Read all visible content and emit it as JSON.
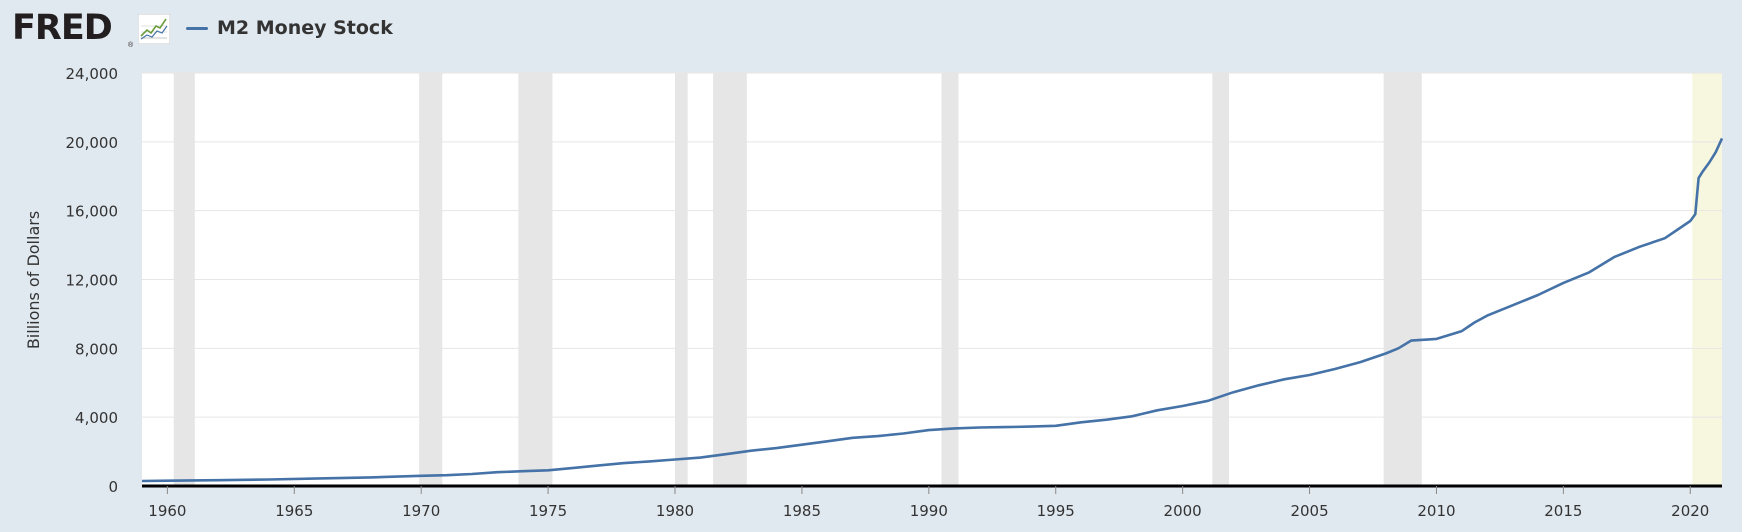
{
  "header": {
    "logo_text": "FRED",
    "logo_mark": "®",
    "graph_icon": "line-chart-icon"
  },
  "chart_data": {
    "type": "line",
    "title": "",
    "legend": {
      "placement": "top-left",
      "entries": [
        "M2 Money Stock"
      ]
    },
    "ylabel": "Billions of Dollars",
    "xlabel": "",
    "xlim": [
      1959.0,
      2021.25
    ],
    "ylim": [
      0,
      24000
    ],
    "grid": true,
    "yticks": [
      0,
      4000,
      8000,
      12000,
      16000,
      20000,
      24000
    ],
    "ytick_labels": [
      "0",
      "4,000",
      "8,000",
      "12,000",
      "16,000",
      "20,000",
      "24,000"
    ],
    "xticks": [
      1960,
      1965,
      1970,
      1975,
      1980,
      1985,
      1990,
      1995,
      2000,
      2005,
      2010,
      2015,
      2020
    ],
    "xtick_labels": [
      "1960",
      "1965",
      "1970",
      "1975",
      "1980",
      "1985",
      "1990",
      "1995",
      "2000",
      "2005",
      "2010",
      "2015",
      "2020"
    ],
    "colors": {
      "series": "#4572a7",
      "recession": "#e6e6e6",
      "projection": "#f7f7df",
      "grid": "#e6e6e6",
      "axis": "#000000"
    },
    "recessions": [
      [
        1960.25,
        1961.08
      ],
      [
        1969.92,
        1970.83
      ],
      [
        1973.83,
        1975.17
      ],
      [
        1980.0,
        1980.5
      ],
      [
        1981.5,
        1982.83
      ],
      [
        1990.5,
        1991.17
      ],
      [
        2001.17,
        2001.83
      ],
      [
        2007.92,
        2009.42
      ]
    ],
    "highlight_band": [
      2020.08,
      2021.25
    ],
    "series": [
      {
        "name": "M2 Money Stock",
        "x": [
          1959.0,
          1960,
          1962,
          1964,
          1966,
          1968,
          1970,
          1971,
          1972,
          1973,
          1974,
          1975,
          1976,
          1977,
          1978,
          1979,
          1980,
          1981,
          1982,
          1983,
          1984,
          1985,
          1986,
          1987,
          1988,
          1989,
          1990,
          1991,
          1992,
          1993,
          1994,
          1995,
          1996,
          1997,
          1998,
          1999,
          2000,
          2001,
          2002,
          2003,
          2004,
          2005,
          2006,
          2007,
          2008,
          2008.5,
          2009,
          2010,
          2011,
          2011.5,
          2012,
          2013,
          2014,
          2015,
          2016,
          2017,
          2018,
          2019,
          2020.0,
          2020.2,
          2020.33,
          2020.5,
          2020.75,
          2021.0,
          2021.25
        ],
        "values": [
          290,
          310,
          335,
          380,
          440,
          500,
          590,
          630,
          700,
          800,
          860,
          910,
          1050,
          1200,
          1330,
          1430,
          1540,
          1650,
          1850,
          2050,
          2200,
          2400,
          2600,
          2800,
          2900,
          3050,
          3250,
          3350,
          3400,
          3420,
          3450,
          3500,
          3700,
          3850,
          4050,
          4400,
          4650,
          4950,
          5450,
          5850,
          6200,
          6450,
          6800,
          7200,
          7700,
          8000,
          8450,
          8550,
          9000,
          9500,
          9900,
          10500,
          11100,
          11800,
          12400,
          13300,
          13900,
          14400,
          15400,
          15800,
          17900,
          18300,
          18800,
          19400,
          20200
        ]
      }
    ]
  }
}
